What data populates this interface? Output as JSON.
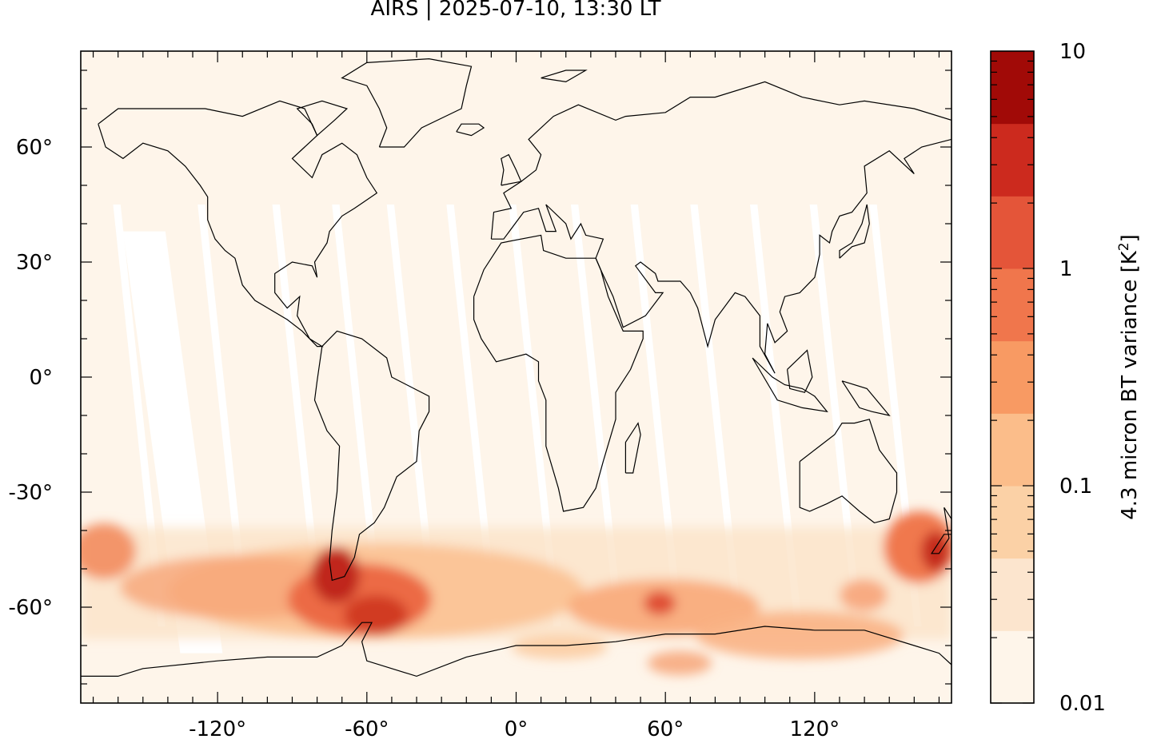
{
  "title": "AIRS | 2025-07-10, 13:30 LT",
  "map": {
    "projection": "equirectangular",
    "lon_range": [
      -175,
      175
    ],
    "lat_range": [
      -85,
      85
    ],
    "lon_ticks": [
      -120,
      -60,
      0,
      60,
      120
    ],
    "lon_tick_labels": [
      "-120°",
      "-60°",
      "0°",
      "60°",
      "120°"
    ],
    "lat_ticks": [
      60,
      30,
      0,
      -30,
      -60
    ],
    "lat_tick_labels": [
      "60°",
      "30°",
      "0°",
      "-30°",
      "-60°"
    ],
    "background_color": "#fef5ea",
    "swath_gap_color": "#ffffff",
    "coastline_color": "#000000"
  },
  "colorbar": {
    "label": "4.3 micron BT variance [K²]",
    "label_main": "4.3 micron BT variance [K",
    "label_sup": "2",
    "label_end": "]",
    "scale": "log",
    "range": [
      0.01,
      10
    ],
    "tick_values": [
      10,
      1,
      0.1,
      0.01
    ],
    "tick_labels": [
      "10",
      "1",
      "0.1",
      "0.01"
    ],
    "colors": [
      "#fef5ea",
      "#fce5ce",
      "#fbd1a6",
      "#fbbd8a",
      "#f89a63",
      "#f0764c",
      "#e45539",
      "#cc2a1e",
      "#a10a07"
    ]
  },
  "chart_data": {
    "type": "heatmap",
    "title": "AIRS | 2025-07-10, 13:30 LT",
    "xlabel": "",
    "ylabel": "",
    "variable": "4.3 micron BT variance [K²]",
    "scale": "log",
    "color_range": [
      0.01,
      10
    ],
    "hotspots": [
      {
        "lon": -70,
        "lat": -53,
        "value": 5
      },
      {
        "lon": -55,
        "lat": -62,
        "value": 3
      },
      {
        "lon": -80,
        "lat": -58,
        "value": 1.5
      },
      {
        "lon": 60,
        "lat": -60,
        "value": 1.5
      },
      {
        "lon": 170,
        "lat": -47,
        "value": 4
      },
      {
        "lon": -168,
        "lat": -45,
        "value": 0.5
      },
      {
        "lon": 100,
        "lat": -65,
        "value": 0.8
      }
    ]
  }
}
